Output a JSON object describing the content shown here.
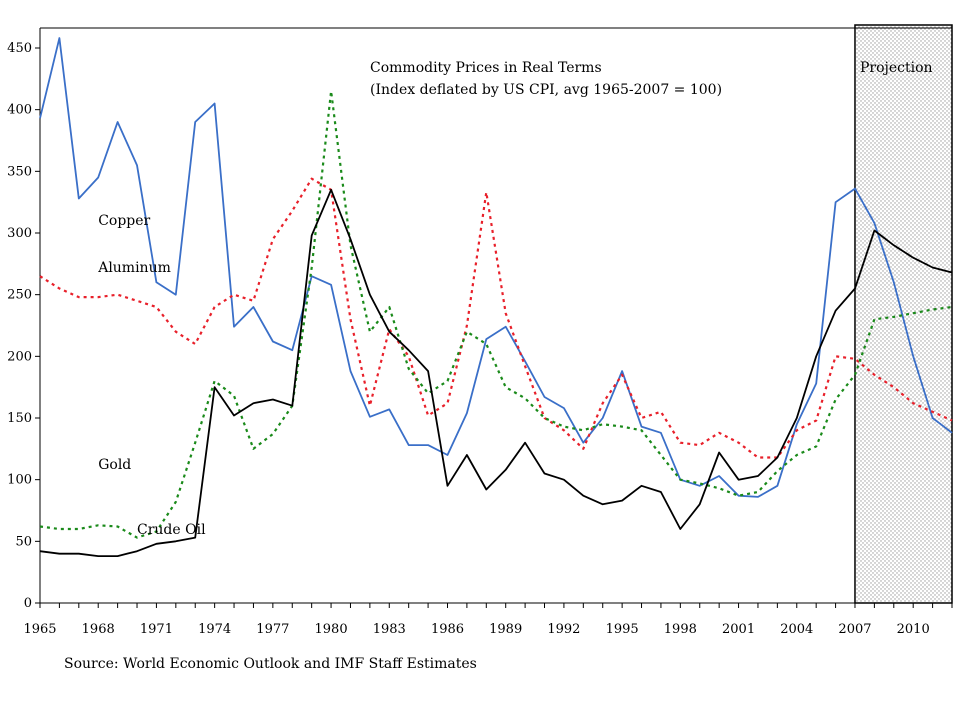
{
  "chart_data": {
    "type": "line",
    "title": "Commodity Prices in Real Terms",
    "subtitle": "(Index deflated by US CPI, avg 1965-2007 = 100)",
    "projection_label": "Projection",
    "projection_start": 2007,
    "source": "Source: World Economic Outlook and IMF Staff Estimates",
    "xlim": [
      1965,
      2012
    ],
    "ylim": [
      0,
      450
    ],
    "x_ticks": [
      1965,
      1968,
      1971,
      1974,
      1977,
      1980,
      1983,
      1986,
      1989,
      1992,
      1995,
      1998,
      2001,
      2004,
      2007,
      2010
    ],
    "y_ticks": [
      0,
      50,
      100,
      150,
      200,
      250,
      300,
      350,
      400,
      450
    ],
    "x": [
      1965,
      1966,
      1967,
      1968,
      1969,
      1970,
      1971,
      1972,
      1973,
      1974,
      1975,
      1976,
      1977,
      1978,
      1979,
      1980,
      1981,
      1982,
      1983,
      1984,
      1985,
      1986,
      1987,
      1988,
      1989,
      1990,
      1991,
      1992,
      1993,
      1994,
      1995,
      1996,
      1997,
      1998,
      1999,
      2000,
      2001,
      2002,
      2003,
      2004,
      2005,
      2006,
      2007,
      2008,
      2009,
      2010,
      2011,
      2012
    ],
    "series": [
      {
        "name": "Copper",
        "color": "#3a6fc8",
        "dash": "solid",
        "label_at": [
          1968,
          225
        ],
        "values": [
          393,
          458,
          328,
          345,
          390,
          355,
          260,
          250,
          390,
          405,
          224,
          240,
          212,
          205,
          265,
          258,
          188,
          151,
          157,
          128,
          128,
          120,
          154,
          214,
          224,
          196,
          167,
          158,
          130,
          150,
          188,
          143,
          138,
          100,
          95,
          103,
          87,
          86,
          95,
          145,
          178,
          325,
          336,
          308,
          260,
          200,
          150,
          138
        ]
      },
      {
        "name": "Aluminum",
        "color": "#e8202a",
        "dash": "dotted",
        "label_at": [
          1968,
          272
        ],
        "values": [
          265,
          255,
          248,
          248,
          250,
          245,
          240,
          220,
          210,
          240,
          250,
          245,
          295,
          318,
          344,
          335,
          230,
          160,
          222,
          200,
          152,
          162,
          225,
          333,
          235,
          192,
          150,
          140,
          125,
          162,
          185,
          150,
          155,
          130,
          128,
          138,
          130,
          118,
          118,
          140,
          148,
          200,
          198,
          185,
          175,
          162,
          155,
          148
        ]
      },
      {
        "name": "Gold",
        "color": "#1a8a1a",
        "dash": "dotted",
        "label_at": [
          1968,
          469
        ],
        "values": [
          62,
          60,
          60,
          63,
          62,
          53,
          58,
          82,
          130,
          180,
          168,
          125,
          137,
          160,
          272,
          415,
          290,
          220,
          240,
          190,
          170,
          180,
          220,
          210,
          175,
          166,
          150,
          143,
          140,
          145,
          143,
          140,
          120,
          100,
          97,
          93,
          87,
          90,
          107,
          120,
          127,
          165,
          185,
          230,
          232,
          235,
          238,
          240
        ]
      },
      {
        "name": "Crude Oil",
        "color": "#000000",
        "dash": "solid",
        "label_at": [
          1970,
          534
        ],
        "values": [
          42,
          40,
          40,
          38,
          38,
          42,
          48,
          50,
          53,
          175,
          152,
          162,
          165,
          160,
          298,
          335,
          295,
          250,
          220,
          205,
          188,
          95,
          120,
          92,
          108,
          130,
          105,
          100,
          87,
          80,
          83,
          95,
          90,
          60,
          80,
          122,
          100,
          103,
          118,
          150,
          200,
          237,
          255,
          302,
          290,
          280,
          272,
          268
        ]
      }
    ]
  }
}
